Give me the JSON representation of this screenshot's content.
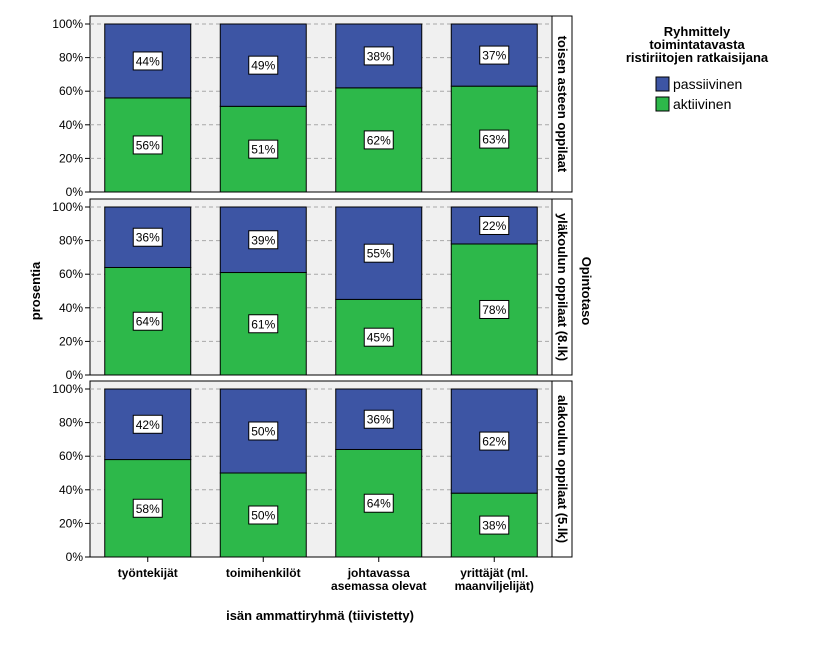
{
  "chart_data": {
    "type": "bar",
    "stacked": true,
    "categories": [
      "työntekijät",
      "toimihenkilöt",
      "johtavassa asemassa olevat",
      "yrittäjät (ml. maanviljelijät)"
    ],
    "category_lines": [
      [
        "työntekijät"
      ],
      [
        "toimihenkilöt"
      ],
      [
        "johtavassa",
        "asemassa olevat"
      ],
      [
        "yrittäjät (ml.",
        "maanviljelijät)"
      ]
    ],
    "xlabel": "isän ammattiryhmä (tiivistetty)",
    "ylabel": "prosentia",
    "ylim": [
      0,
      100
    ],
    "yticks": [
      "0%",
      "20%",
      "40%",
      "60%",
      "80%",
      "100%"
    ],
    "grid": true,
    "facet_title": "Opintotaso",
    "legend": {
      "title_lines": [
        "Ryhmittely",
        "toimintatavasta",
        "ristiriitojen ratkaisijana"
      ],
      "placement": "top-right",
      "items": [
        {
          "name": "passiivinen",
          "color": "#3d55a4"
        },
        {
          "name": "aktiivinen",
          "color": "#2db84a"
        }
      ]
    },
    "panels": [
      {
        "name": "toisen asteen oppilaat",
        "series": [
          {
            "name": "aktiivinen",
            "values": [
              56,
              51,
              62,
              63
            ],
            "labels": [
              "56%",
              "51%",
              "62%",
              "63%"
            ]
          },
          {
            "name": "passiivinen",
            "values": [
              44,
              49,
              38,
              37
            ],
            "labels": [
              "44%",
              "49%",
              "38%",
              "37%"
            ]
          }
        ]
      },
      {
        "name": "yläkoulun oppilaat (8.lk)",
        "series": [
          {
            "name": "aktiivinen",
            "values": [
              64,
              61,
              45,
              78
            ],
            "labels": [
              "64%",
              "61%",
              "45%",
              "78%"
            ]
          },
          {
            "name": "passiivinen",
            "values": [
              36,
              39,
              55,
              22
            ],
            "labels": [
              "36%",
              "39%",
              "55%",
              "22%"
            ]
          }
        ]
      },
      {
        "name": "alakoulun oppilaat (5.lk)",
        "series": [
          {
            "name": "aktiivinen",
            "values": [
              58,
              50,
              64,
              38
            ],
            "labels": [
              "58%",
              "50%",
              "64%",
              "38%"
            ]
          },
          {
            "name": "passiivinen",
            "values": [
              42,
              50,
              36,
              62
            ],
            "labels": [
              "42%",
              "50%",
              "36%",
              "62%"
            ]
          }
        ]
      }
    ]
  }
}
